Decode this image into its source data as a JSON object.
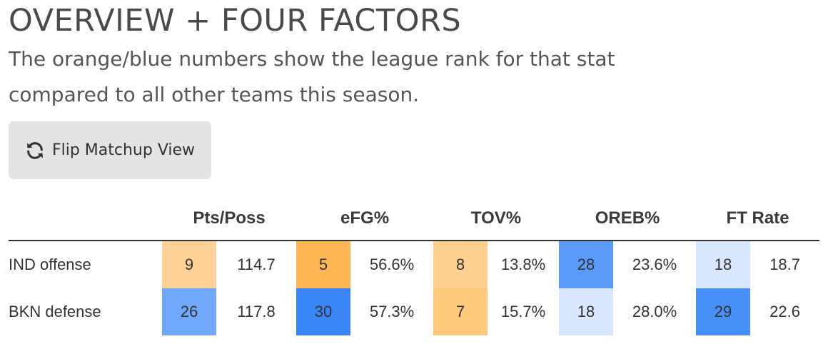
{
  "header": {
    "title": "OVERVIEW + FOUR FACTORS",
    "subtitle": "The orange/blue numbers show the league rank for that stat compared to all other teams this season."
  },
  "flip_button": {
    "label": "Flip Matchup View",
    "icon": "refresh-icon"
  },
  "table": {
    "columns": [
      "Pts/Poss",
      "eFG%",
      "TOV%",
      "OREB%",
      "FT Rate"
    ],
    "rows": [
      {
        "team": "IND offense",
        "cells": [
          {
            "rank": "9",
            "value": "114.7",
            "color": "#fed196"
          },
          {
            "rank": "5",
            "value": "56.6%",
            "color": "#feb554"
          },
          {
            "rank": "8",
            "value": "13.8%",
            "color": "#fed08f"
          },
          {
            "rank": "28",
            "value": "23.6%",
            "color": "#5b9af9"
          },
          {
            "rank": "18",
            "value": "18.7",
            "color": "#d9e7fe"
          }
        ]
      },
      {
        "team": "BKN defense",
        "cells": [
          {
            "rank": "26",
            "value": "117.8",
            "color": "#70a8fb"
          },
          {
            "rank": "30",
            "value": "57.3%",
            "color": "#3a86f7"
          },
          {
            "rank": "7",
            "value": "15.7%",
            "color": "#fec97d"
          },
          {
            "rank": "18",
            "value": "28.0%",
            "color": "#d9e7fe"
          },
          {
            "rank": "29",
            "value": "22.6",
            "color": "#4790f8"
          }
        ]
      }
    ]
  }
}
